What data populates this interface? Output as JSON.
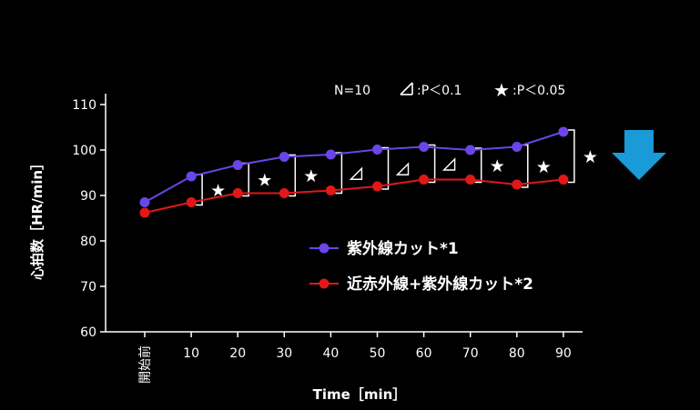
{
  "chart_data": {
    "type": "line",
    "categories": [
      "開始前",
      "10",
      "20",
      "30",
      "40",
      "50",
      "60",
      "70",
      "80",
      "90"
    ],
    "xlabel": "Time［min］",
    "ylabel": "心拍数［HR/min］",
    "ylim": [
      60,
      110
    ],
    "yticks": [
      "60",
      "70",
      "80",
      "90",
      "100",
      "110"
    ],
    "grid": false,
    "legend_position": "center-right",
    "note": {
      "n": "N=10",
      "trend_label": ":P＜0.1",
      "sig_label": ":P＜0.05"
    },
    "series": [
      {
        "name": "紫外線カット*1",
        "color": "#6a45e8",
        "values": [
          88.5,
          94.2,
          96.7,
          98.5,
          99.0,
          100.1,
          100.7,
          100.0,
          100.7,
          104.0
        ]
      },
      {
        "name": "近赤外線+紫外線カット*2",
        "color": "#e01818",
        "values": [
          86.2,
          88.5,
          90.5,
          90.5,
          91.1,
          92.0,
          93.5,
          93.5,
          92.4,
          93.5
        ]
      }
    ],
    "significance": [
      "★",
      "★",
      "★",
      "◿",
      "◿",
      "◿",
      "★",
      "★",
      "★"
    ],
    "arrow_color": "#1a9ad6"
  }
}
